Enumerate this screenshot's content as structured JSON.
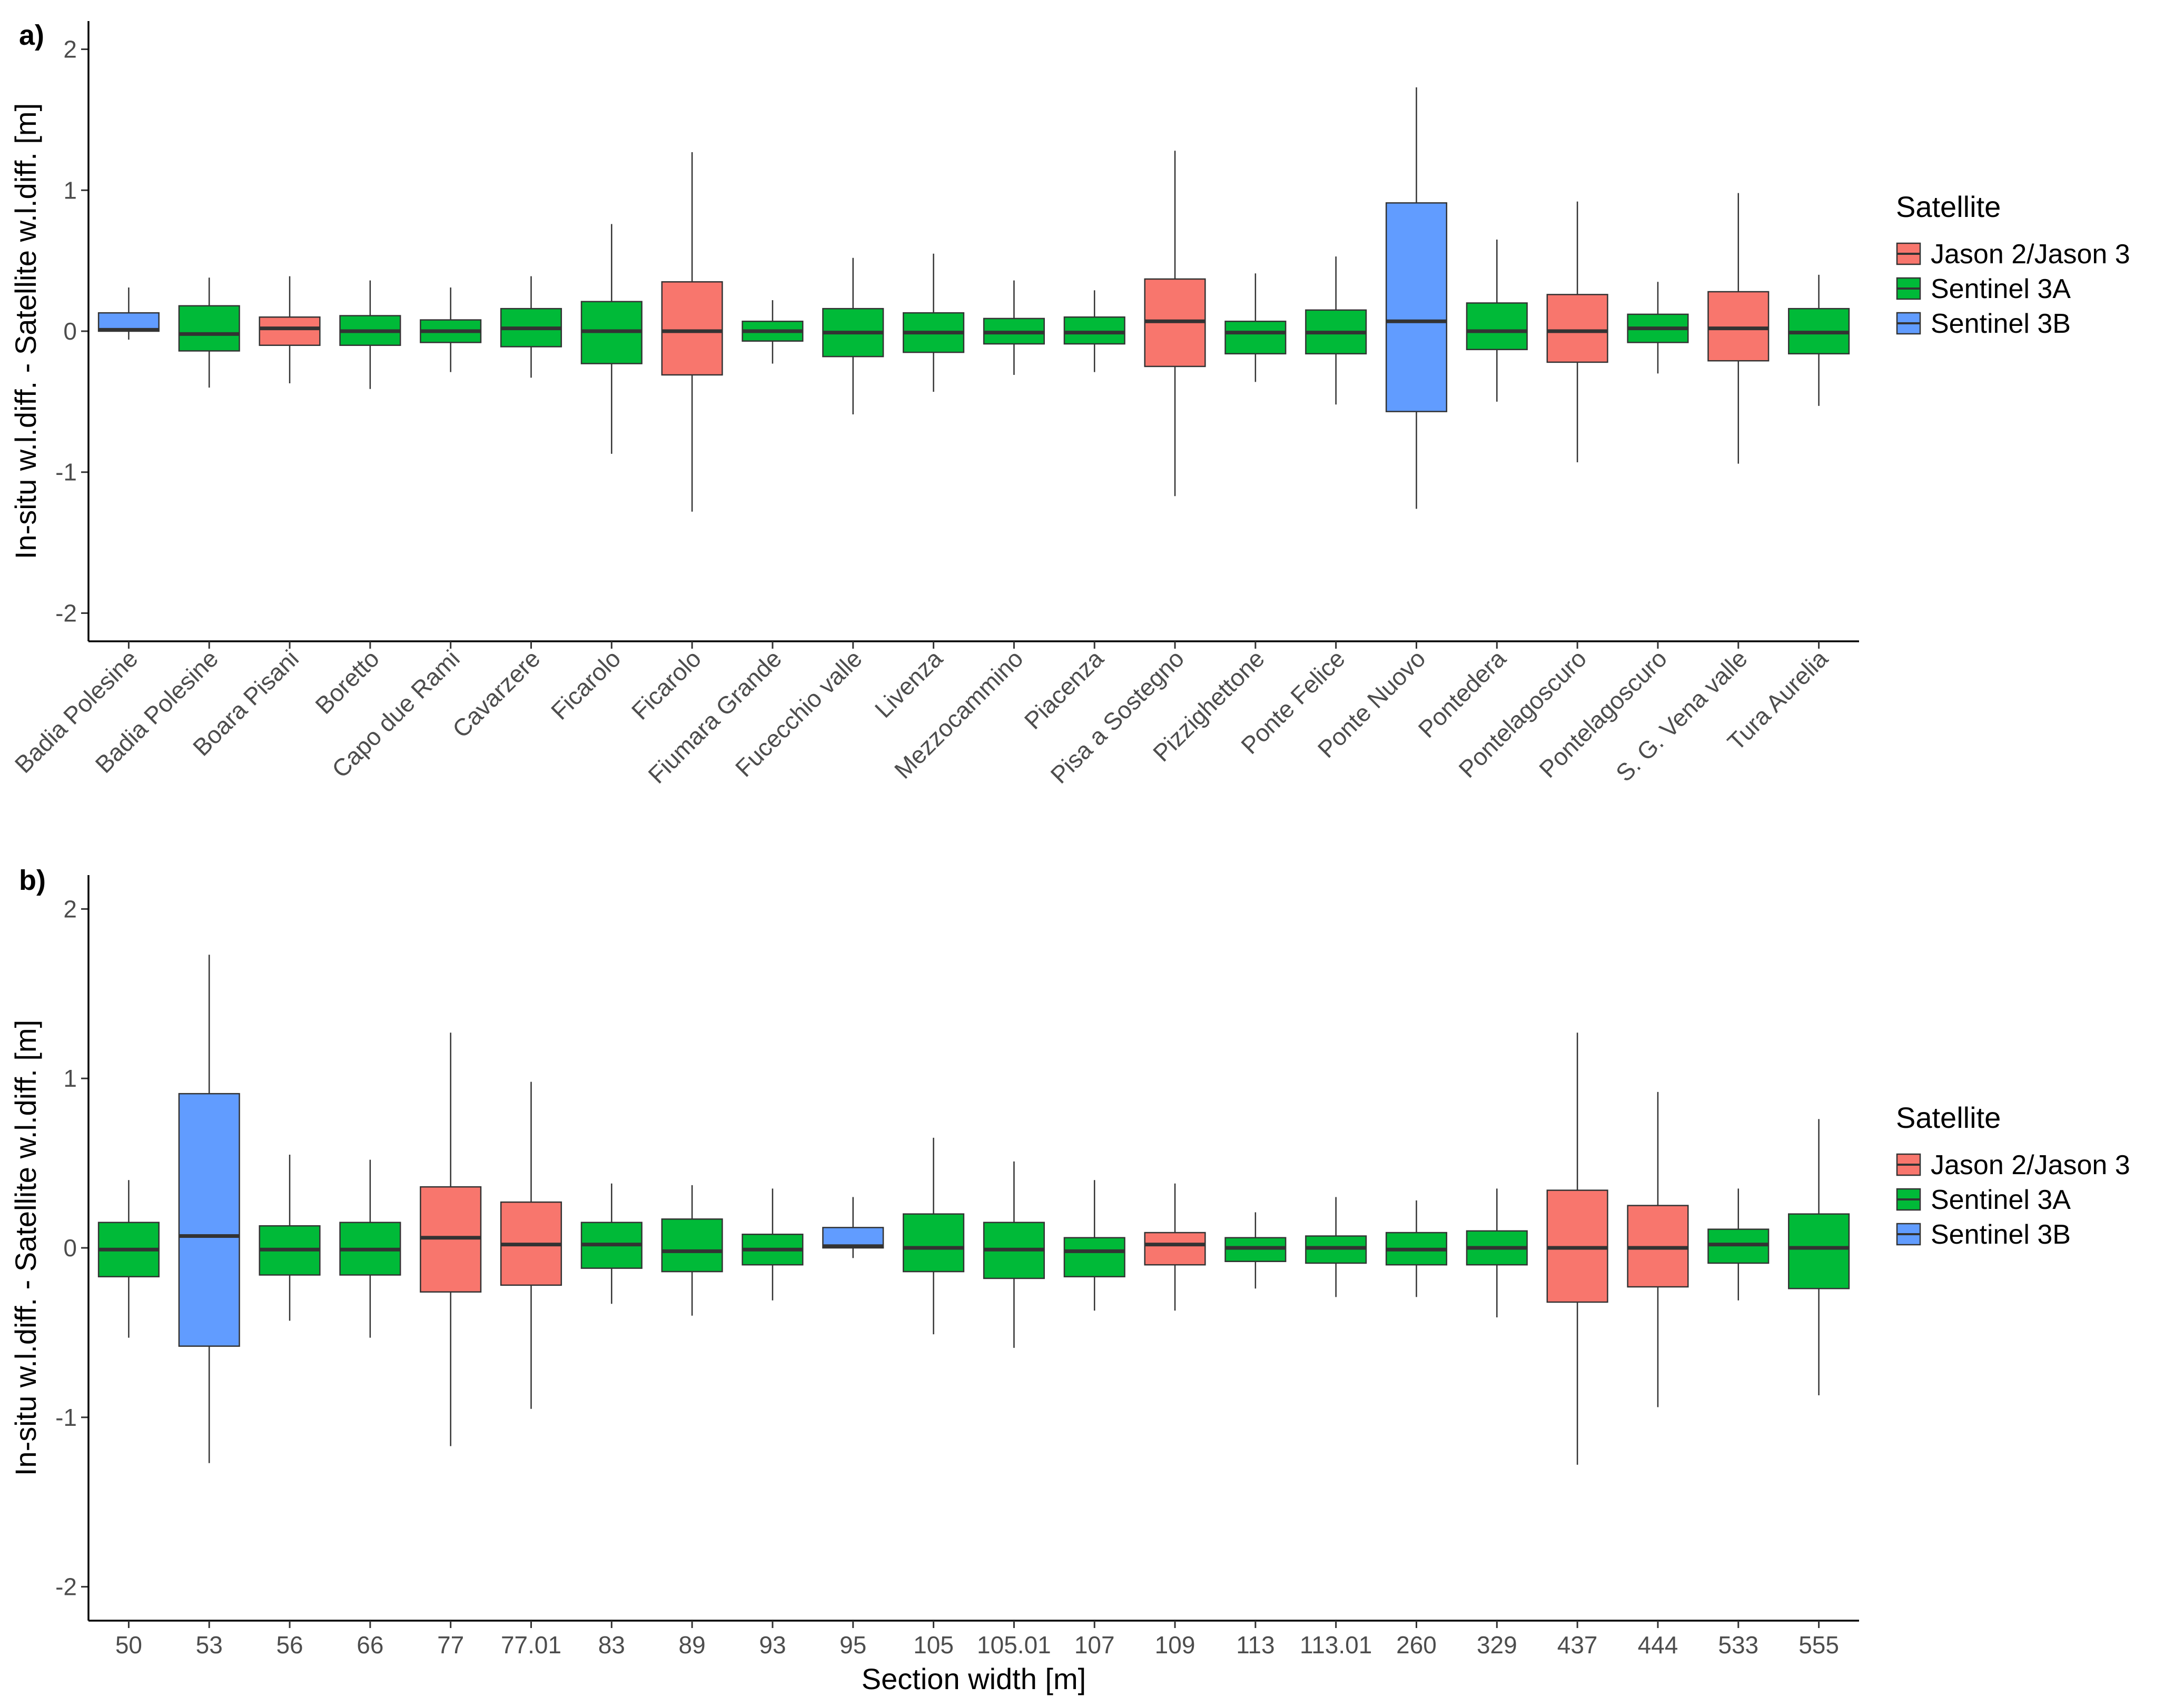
{
  "colors": {
    "Jason 2/Jason 3": "#f8766d",
    "Sentinel 3A": "#00ba38",
    "Sentinel 3B": "#619cff",
    "axis": "#000000",
    "box_line": "#333333"
  },
  "chart_data": [
    {
      "type": "boxplot",
      "panel": "a)",
      "xlabel": "",
      "ylabel": "In-situ w.l.diff. - Satellite  w.l.diff. [m]",
      "ylim": [
        -2.2,
        2.2
      ],
      "yticks": [
        -2,
        -1,
        0,
        1,
        2
      ],
      "ytick_labels": [
        "-2",
        "-1",
        "0",
        "1",
        "2"
      ],
      "legend": {
        "title": "Satellite",
        "entries": [
          "Jason 2/Jason 3",
          "Sentinel 3A",
          "Sentinel 3B"
        ]
      },
      "categories": [
        "Badia Polesine",
        "Badia Polesine",
        "Boara Pisani",
        "Boretto",
        "Capo due Rami",
        "Cavarzere",
        "Ficarolo",
        "Ficarolo",
        "Fiumara Grande",
        "Fucecchio valle",
        "Livenza",
        "Mezzocammino",
        "Piacenza",
        "Pisa a Sostegno",
        "Pizzighettone",
        "Ponte Felice",
        "Ponte Nuovo",
        "Pontedera",
        "Pontelagoscuro",
        "Pontelagoscuro",
        "S. G. Vena valle",
        "Tura Aurelia"
      ],
      "boxes": [
        {
          "satellite": "Sentinel 3B",
          "whisker_low": -0.06,
          "q1": 0.0,
          "median": 0.01,
          "q3": 0.13,
          "whisker_high": 0.31
        },
        {
          "satellite": "Sentinel 3A",
          "whisker_low": -0.4,
          "q1": -0.14,
          "median": -0.02,
          "q3": 0.18,
          "whisker_high": 0.38
        },
        {
          "satellite": "Jason 2/Jason 3",
          "whisker_low": -0.37,
          "q1": -0.1,
          "median": 0.02,
          "q3": 0.1,
          "whisker_high": 0.39
        },
        {
          "satellite": "Sentinel 3A",
          "whisker_low": -0.41,
          "q1": -0.1,
          "median": 0.0,
          "q3": 0.11,
          "whisker_high": 0.36
        },
        {
          "satellite": "Sentinel 3A",
          "whisker_low": -0.29,
          "q1": -0.08,
          "median": 0.0,
          "q3": 0.08,
          "whisker_high": 0.31
        },
        {
          "satellite": "Sentinel 3A",
          "whisker_low": -0.33,
          "q1": -0.11,
          "median": 0.02,
          "q3": 0.16,
          "whisker_high": 0.39
        },
        {
          "satellite": "Sentinel 3A",
          "whisker_low": -0.87,
          "q1": -0.23,
          "median": 0.0,
          "q3": 0.21,
          "whisker_high": 0.76
        },
        {
          "satellite": "Jason 2/Jason 3",
          "whisker_low": -1.28,
          "q1": -0.31,
          "median": 0.0,
          "q3": 0.35,
          "whisker_high": 1.27
        },
        {
          "satellite": "Sentinel 3A",
          "whisker_low": -0.23,
          "q1": -0.07,
          "median": 0.0,
          "q3": 0.07,
          "whisker_high": 0.22
        },
        {
          "satellite": "Sentinel 3A",
          "whisker_low": -0.59,
          "q1": -0.18,
          "median": -0.01,
          "q3": 0.16,
          "whisker_high": 0.52
        },
        {
          "satellite": "Sentinel 3A",
          "whisker_low": -0.43,
          "q1": -0.15,
          "median": -0.01,
          "q3": 0.13,
          "whisker_high": 0.55
        },
        {
          "satellite": "Sentinel 3A",
          "whisker_low": -0.31,
          "q1": -0.09,
          "median": -0.01,
          "q3": 0.09,
          "whisker_high": 0.36
        },
        {
          "satellite": "Sentinel 3A",
          "whisker_low": -0.29,
          "q1": -0.09,
          "median": -0.01,
          "q3": 0.1,
          "whisker_high": 0.29
        },
        {
          "satellite": "Jason 2/Jason 3",
          "whisker_low": -1.17,
          "q1": -0.25,
          "median": 0.07,
          "q3": 0.37,
          "whisker_high": 1.28
        },
        {
          "satellite": "Sentinel 3A",
          "whisker_low": -0.36,
          "q1": -0.16,
          "median": -0.01,
          "q3": 0.07,
          "whisker_high": 0.41
        },
        {
          "satellite": "Sentinel 3A",
          "whisker_low": -0.52,
          "q1": -0.16,
          "median": -0.01,
          "q3": 0.15,
          "whisker_high": 0.53
        },
        {
          "satellite": "Sentinel 3B",
          "whisker_low": -1.26,
          "q1": -0.57,
          "median": 0.07,
          "q3": 0.91,
          "whisker_high": 1.73
        },
        {
          "satellite": "Sentinel 3A",
          "whisker_low": -0.5,
          "q1": -0.13,
          "median": 0.0,
          "q3": 0.2,
          "whisker_high": 0.65
        },
        {
          "satellite": "Jason 2/Jason 3",
          "whisker_low": -0.93,
          "q1": -0.22,
          "median": 0.0,
          "q3": 0.26,
          "whisker_high": 0.92
        },
        {
          "satellite": "Sentinel 3A",
          "whisker_low": -0.3,
          "q1": -0.08,
          "median": 0.02,
          "q3": 0.12,
          "whisker_high": 0.35
        },
        {
          "satellite": "Jason 2/Jason 3",
          "whisker_low": -0.94,
          "q1": -0.21,
          "median": 0.02,
          "q3": 0.28,
          "whisker_high": 0.98
        },
        {
          "satellite": "Sentinel 3A",
          "whisker_low": -0.53,
          "q1": -0.16,
          "median": -0.01,
          "q3": 0.16,
          "whisker_high": 0.4
        }
      ]
    },
    {
      "type": "boxplot",
      "panel": "b)",
      "xlabel": "Section width [m]",
      "ylabel": "In-situ w.l.diff. - Satellite w.l.diff. [m]",
      "ylim": [
        -2.2,
        2.2
      ],
      "yticks": [
        -2,
        -1,
        0,
        1,
        2
      ],
      "ytick_labels": [
        "-2",
        "-1",
        "0",
        "1",
        "2"
      ],
      "legend": {
        "title": "Satellite",
        "entries": [
          "Jason 2/Jason 3",
          "Sentinel 3A",
          "Sentinel 3B"
        ]
      },
      "categories": [
        "50",
        "53",
        "56",
        "66",
        "77",
        "77.01",
        "83",
        "89",
        "93",
        "95",
        "105",
        "105.01",
        "107",
        "109",
        "113",
        "113.01",
        "260",
        "329",
        "437",
        "444",
        "533",
        "555"
      ],
      "boxes": [
        {
          "satellite": "Sentinel 3A",
          "whisker_low": -0.53,
          "q1": -0.17,
          "median": -0.01,
          "q3": 0.15,
          "whisker_high": 0.4
        },
        {
          "satellite": "Sentinel 3B",
          "whisker_low": -1.27,
          "q1": -0.58,
          "median": 0.07,
          "q3": 0.91,
          "whisker_high": 1.73
        },
        {
          "satellite": "Sentinel 3A",
          "whisker_low": -0.43,
          "q1": -0.16,
          "median": -0.01,
          "q3": 0.13,
          "whisker_high": 0.55
        },
        {
          "satellite": "Sentinel 3A",
          "whisker_low": -0.53,
          "q1": -0.16,
          "median": -0.01,
          "q3": 0.15,
          "whisker_high": 0.52
        },
        {
          "satellite": "Jason 2/Jason 3",
          "whisker_low": -1.17,
          "q1": -0.26,
          "median": 0.06,
          "q3": 0.36,
          "whisker_high": 1.27
        },
        {
          "satellite": "Jason 2/Jason 3",
          "whisker_low": -0.95,
          "q1": -0.22,
          "median": 0.02,
          "q3": 0.27,
          "whisker_high": 0.98
        },
        {
          "satellite": "Sentinel 3A",
          "whisker_low": -0.33,
          "q1": -0.12,
          "median": 0.02,
          "q3": 0.15,
          "whisker_high": 0.38
        },
        {
          "satellite": "Sentinel 3A",
          "whisker_low": -0.4,
          "q1": -0.14,
          "median": -0.02,
          "q3": 0.17,
          "whisker_high": 0.37
        },
        {
          "satellite": "Sentinel 3A",
          "whisker_low": -0.31,
          "q1": -0.1,
          "median": -0.01,
          "q3": 0.08,
          "whisker_high": 0.35
        },
        {
          "satellite": "Sentinel 3B",
          "whisker_low": -0.06,
          "q1": 0.0,
          "median": 0.01,
          "q3": 0.12,
          "whisker_high": 0.3
        },
        {
          "satellite": "Sentinel 3A",
          "whisker_low": -0.51,
          "q1": -0.14,
          "median": 0.0,
          "q3": 0.2,
          "whisker_high": 0.65
        },
        {
          "satellite": "Sentinel 3A",
          "whisker_low": -0.59,
          "q1": -0.18,
          "median": -0.01,
          "q3": 0.15,
          "whisker_high": 0.51
        },
        {
          "satellite": "Sentinel 3A",
          "whisker_low": -0.37,
          "q1": -0.17,
          "median": -0.02,
          "q3": 0.06,
          "whisker_high": 0.4
        },
        {
          "satellite": "Jason 2/Jason 3",
          "whisker_low": -0.37,
          "q1": -0.1,
          "median": 0.02,
          "q3": 0.09,
          "whisker_high": 0.38
        },
        {
          "satellite": "Sentinel 3A",
          "whisker_low": -0.24,
          "q1": -0.08,
          "median": 0.0,
          "q3": 0.06,
          "whisker_high": 0.21
        },
        {
          "satellite": "Sentinel 3A",
          "whisker_low": -0.29,
          "q1": -0.09,
          "median": 0.0,
          "q3": 0.07,
          "whisker_high": 0.3
        },
        {
          "satellite": "Sentinel 3A",
          "whisker_low": -0.29,
          "q1": -0.1,
          "median": -0.01,
          "q3": 0.09,
          "whisker_high": 0.28
        },
        {
          "satellite": "Sentinel 3A",
          "whisker_low": -0.41,
          "q1": -0.1,
          "median": 0.0,
          "q3": 0.1,
          "whisker_high": 0.35
        },
        {
          "satellite": "Jason 2/Jason 3",
          "whisker_low": -1.28,
          "q1": -0.32,
          "median": 0.0,
          "q3": 0.34,
          "whisker_high": 1.27
        },
        {
          "satellite": "Jason 2/Jason 3",
          "whisker_low": -0.94,
          "q1": -0.23,
          "median": 0.0,
          "q3": 0.25,
          "whisker_high": 0.92
        },
        {
          "satellite": "Sentinel 3A",
          "whisker_low": -0.31,
          "q1": -0.09,
          "median": 0.02,
          "q3": 0.11,
          "whisker_high": 0.35
        },
        {
          "satellite": "Sentinel 3A",
          "whisker_low": -0.87,
          "q1": -0.24,
          "median": 0.0,
          "q3": 0.2,
          "whisker_high": 0.76
        }
      ]
    }
  ]
}
